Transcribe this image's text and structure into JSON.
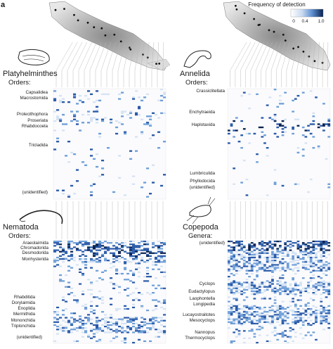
{
  "figure": {
    "panel_letter": "a",
    "legend": {
      "title": "Frequency of detection",
      "ticks": [
        "0",
        "0.4",
        "1.0"
      ],
      "colors": [
        "#ffffff",
        "#d6e3f3",
        "#6f9fd8",
        "#2a5aa8",
        "#08224f"
      ]
    },
    "panels": [
      {
        "id": "platyhelminthes",
        "taxon": "Platyhelminthes",
        "rank_label": "Orders:",
        "row_labels": [
          "Capsalidea",
          "Macrostomida",
          "Prolecithophora",
          "Proseriata",
          "Rhabdocoela",
          "Tricladida",
          "(unidentified)"
        ]
      },
      {
        "id": "annelida",
        "taxon": "Annelida",
        "rank_label": "Orders:",
        "row_labels": [
          "Crassiclitellata",
          "Enchytraeida",
          "Haplotaxida",
          "Lumbriculida",
          "Phyllodocida",
          "(unidentified)"
        ]
      },
      {
        "id": "nematoda",
        "taxon": "Nematoda",
        "rank_label": "Orders:",
        "row_labels": [
          "Araeolaimida",
          "Chromadorida",
          "Desmodorida",
          "Monhysterida",
          "Rhabditida",
          "Dorylaimida",
          "Enoplida",
          "Mermithida",
          "Mononchida",
          "Triplonchida",
          "(unidentified)"
        ]
      },
      {
        "id": "copepoda",
        "taxon": "Copepoda",
        "rank_label": "Genera:",
        "row_labels": [
          "(unidentified)",
          "Cyclops",
          "Eudactylopus",
          "Laophontella",
          "Longipedia",
          "Lucayostraitotes",
          "Mesocyclops",
          "Nannopus",
          "Thermocyclops"
        ]
      }
    ]
  }
}
